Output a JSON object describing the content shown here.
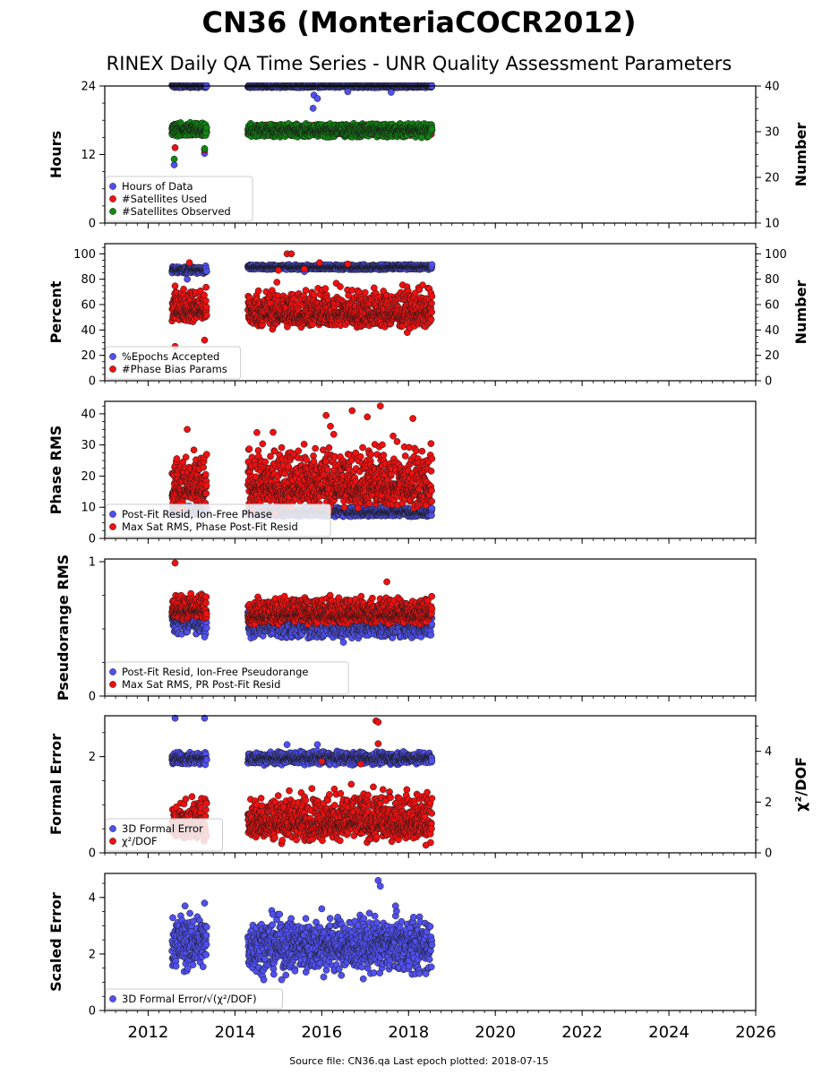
{
  "header": {
    "title": "CN36 (MonteriaCOCR2012)",
    "subtitle": "RINEX Daily QA Time Series - UNR Quality Assessment Parameters"
  },
  "footer": {
    "text": "Source file: CN36.qa Last epoch plotted: 2018-07-15"
  },
  "colors": {
    "blue": "#5050f0",
    "red": "#ee1111",
    "green": "#118811",
    "marker_edge": "#1a1a1a"
  },
  "chart_data": [
    {
      "type": "scatter",
      "ylabel": "Hours",
      "ylabel_right": "Number",
      "ylim": [
        0,
        24
      ],
      "yticks": [
        0,
        12,
        24
      ],
      "ylim_right": [
        10,
        40
      ],
      "yticks_right": [
        10,
        20,
        30,
        40
      ],
      "xlim": [
        2011.0,
        2026.0
      ],
      "legend": [
        "Hours of Data",
        "#Satellites Used",
        "#Satellites Observed"
      ],
      "series": [
        {
          "name": "Hours of Data",
          "color": "blue",
          "axis": "left",
          "segments": [
            [
              2012.55,
              2013.35,
              24,
              0.15,
              0.3
            ],
            [
              2014.3,
              2018.54,
              24,
              0.15,
              0.3
            ]
          ],
          "outliers": [
            [
              2012.6,
              10.2
            ],
            [
              2013.3,
              12.2
            ],
            [
              2015.8,
              20.1
            ],
            [
              2015.82,
              22.4
            ],
            [
              2015.9,
              21.8
            ],
            [
              2016.6,
              23.0
            ],
            [
              2017.6,
              22.9
            ]
          ]
        },
        {
          "name": "#Satellites Used",
          "color": "red",
          "axis": "right",
          "segments": [
            [
              2012.55,
              2013.35,
              30,
              0.8,
              1.5
            ],
            [
              2014.3,
              2018.54,
              30,
              0.8,
              1.5
            ]
          ],
          "outliers": [
            [
              2012.62,
              26.5
            ],
            [
              2013.3,
              26.0
            ],
            [
              2017.3,
              29.0
            ]
          ]
        },
        {
          "name": "#Satellites Observed",
          "color": "green",
          "axis": "right",
          "segments": [
            [
              2012.55,
              2013.35,
              30.5,
              0.8,
              1.5
            ],
            [
              2014.3,
              2018.54,
              30.3,
              0.8,
              1.5
            ]
          ],
          "outliers": [
            [
              2012.6,
              24.0
            ],
            [
              2013.3,
              26.3
            ],
            [
              2018.3,
              28.7
            ]
          ]
        }
      ]
    },
    {
      "type": "scatter",
      "ylabel": "Percent",
      "ylabel_right": "Number",
      "ylim": [
        0,
        108
      ],
      "yticks": [
        0,
        20,
        40,
        60,
        80,
        100
      ],
      "ylim_right": [
        0,
        108
      ],
      "yticks_right": [
        0,
        20,
        40,
        60,
        80,
        100
      ],
      "xlim": [
        2011.0,
        2026.0
      ],
      "legend": [
        "%Epochs Accepted",
        "#Phase Bias Params"
      ],
      "series": [
        {
          "name": "%Epochs Accepted",
          "color": "blue",
          "axis": "left",
          "segments": [
            [
              2012.55,
              2013.35,
              87.5,
              1.5,
              3
            ],
            [
              2014.3,
              2018.54,
              89.5,
              1.0,
              2
            ]
          ],
          "outliers": [
            [
              2012.9,
              80.0
            ],
            [
              2015.6,
              86.0
            ]
          ]
        },
        {
          "name": "#Phase Bias Params",
          "color": "red",
          "axis": "right",
          "segments": [
            [
              2012.55,
              2013.35,
              56,
              8,
              22
            ],
            [
              2014.3,
              2018.54,
              53,
              9,
              30
            ]
          ],
          "outliers": [
            [
              2012.62,
              27.0
            ],
            [
              2013.3,
              32.0
            ],
            [
              2012.95,
              93.0
            ],
            [
              2015.2,
              100.0
            ],
            [
              2015.3,
              100.0
            ],
            [
              2015.6,
              88.0
            ],
            [
              2015.95,
              93.0
            ],
            [
              2016.6,
              92.0
            ],
            [
              2015.0,
              87.0
            ]
          ]
        }
      ]
    },
    {
      "type": "scatter",
      "ylabel": "Phase RMS",
      "ylim": [
        0,
        44
      ],
      "yticks": [
        0,
        10,
        20,
        30,
        40
      ],
      "xlim": [
        2011.0,
        2026.0
      ],
      "legend": [
        "Post-Fit Resid, Ion-Free Phase",
        "Max Sat RMS, Phase Post-Fit Resid"
      ],
      "series": [
        {
          "name": "Post-Fit Resid, Ion-Free Phase",
          "color": "blue",
          "axis": "left",
          "segments": [
            [
              2012.55,
              2013.35,
              9.0,
              0.8,
              1.5
            ],
            [
              2014.3,
              2018.54,
              8.5,
              0.8,
              1.5
            ]
          ],
          "outliers": []
        },
        {
          "name": "Max Sat RMS, Phase Post-Fit Resid",
          "color": "red",
          "axis": "left",
          "segments": [
            [
              2012.55,
              2013.35,
              16,
              5,
              17
            ],
            [
              2014.3,
              2018.54,
              17,
              6,
              22
            ]
          ],
          "outliers": [
            [
              2012.9,
              35.0
            ],
            [
              2016.1,
              39.5
            ],
            [
              2016.7,
              41.0
            ],
            [
              2017.35,
              42.5
            ],
            [
              2018.1,
              38.5
            ],
            [
              2017.05,
              39.0
            ],
            [
              2016.2,
              36.0
            ]
          ]
        }
      ]
    },
    {
      "type": "scatter",
      "ylabel": "Pseudorange RMS",
      "ylim": [
        0,
        1.02
      ],
      "yticks": [
        0,
        1
      ],
      "xlim": [
        2011.0,
        2026.0
      ],
      "legend": [
        "Post-Fit Resid, Ion-Free Pseudorange",
        "Max Sat RMS, PR Post-Fit Resid"
      ],
      "series": [
        {
          "name": "Post-Fit Resid, Ion-Free Pseudorange",
          "color": "blue",
          "axis": "left",
          "segments": [
            [
              2012.55,
              2013.35,
              0.56,
              0.05,
              0.1
            ],
            [
              2014.3,
              2018.54,
              0.53,
              0.05,
              0.1
            ]
          ],
          "outliers": [
            [
              2013.3,
              0.44
            ],
            [
              2016.5,
              0.4
            ]
          ]
        },
        {
          "name": "Max Sat RMS, PR Post-Fit Resid",
          "color": "red",
          "axis": "left",
          "segments": [
            [
              2012.55,
              2013.35,
              0.64,
              0.06,
              0.13
            ],
            [
              2014.3,
              2018.54,
              0.61,
              0.06,
              0.14
            ]
          ],
          "outliers": [
            [
              2012.62,
              0.99
            ],
            [
              2017.5,
              0.85
            ]
          ]
        }
      ]
    },
    {
      "type": "scatter",
      "ylabel": "Formal Error",
      "ylabel_right": "χ²/DOF",
      "ylim": [
        0,
        2.85
      ],
      "yticks": [
        0,
        2
      ],
      "ylim_right": [
        0,
        5.4
      ],
      "yticks_right": [
        0,
        2,
        4
      ],
      "xlim": [
        2011.0,
        2026.0
      ],
      "legend": [
        "3D Formal Error",
        "χ²/DOF"
      ],
      "series": [
        {
          "name": "3D Formal Error",
          "color": "blue",
          "axis": "left",
          "segments": [
            [
              2012.55,
              2013.35,
              1.96,
              0.06,
              0.15
            ],
            [
              2014.3,
              2018.54,
              1.97,
              0.06,
              0.15
            ]
          ],
          "outliers": [
            [
              2012.62,
              2.8
            ],
            [
              2013.3,
              2.8
            ],
            [
              2015.2,
              2.25
            ],
            [
              2015.9,
              2.25
            ]
          ]
        },
        {
          "name": "χ²/DOF",
          "color": "red",
          "axis": "right",
          "segments": [
            [
              2012.55,
              2013.35,
              1.1,
              0.45,
              1.3
            ],
            [
              2014.3,
              2018.54,
              1.2,
              0.55,
              1.8
            ]
          ],
          "outliers": [
            [
              2017.25,
              5.2
            ],
            [
              2017.3,
              5.15
            ],
            [
              2017.3,
              4.3
            ],
            [
              2018.4,
              0.3
            ],
            [
              2016.0,
              3.6
            ],
            [
              2016.9,
              3.5
            ]
          ]
        }
      ]
    },
    {
      "type": "scatter",
      "ylabel": "Scaled Error",
      "ylim": [
        0,
        4.85
      ],
      "yticks": [
        0,
        2,
        4
      ],
      "xlim": [
        2011.0,
        2026.0
      ],
      "legend": [
        "3D Formal Error/√(χ²/DOF)"
      ],
      "series": [
        {
          "name": "3D Formal Error/√(χ²/DOF)",
          "color": "blue",
          "axis": "left",
          "segments": [
            [
              2012.55,
              2013.35,
              2.4,
              0.45,
              1.3
            ],
            [
              2014.3,
              2018.54,
              2.3,
              0.45,
              1.4
            ]
          ],
          "outliers": [
            [
              2012.85,
              3.7
            ],
            [
              2013.3,
              3.8
            ],
            [
              2017.3,
              4.6
            ],
            [
              2017.35,
              4.4
            ],
            [
              2018.4,
              1.3
            ],
            [
              2016.0,
              3.6
            ],
            [
              2017.7,
              3.7
            ]
          ]
        }
      ]
    }
  ],
  "xaxis": {
    "ticks": [
      2012,
      2014,
      2016,
      2018,
      2020,
      2022,
      2024,
      2026
    ]
  }
}
